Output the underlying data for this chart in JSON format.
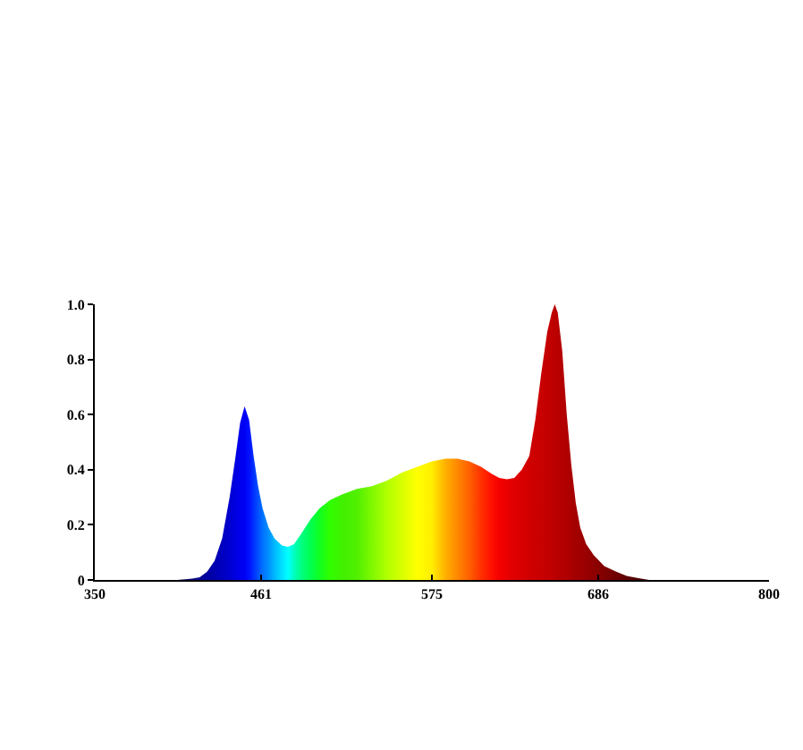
{
  "chart_data": {
    "type": "area",
    "x": [
      405,
      415,
      420,
      425,
      430,
      435,
      440,
      444,
      447,
      450,
      453,
      456,
      459,
      462,
      466,
      470,
      475,
      479,
      483,
      488,
      494,
      500,
      507,
      515,
      525,
      535,
      545,
      555,
      565,
      575,
      584,
      592,
      600,
      608,
      615,
      620,
      625,
      630,
      635,
      640,
      644,
      648,
      652,
      655,
      657,
      659,
      662,
      665,
      668,
      671,
      674,
      678,
      683,
      690,
      698,
      705,
      712,
      720
    ],
    "series": [
      {
        "values": [
          0,
          0.005,
          0.01,
          0.03,
          0.07,
          0.15,
          0.3,
          0.45,
          0.57,
          0.63,
          0.58,
          0.45,
          0.34,
          0.26,
          0.19,
          0.15,
          0.125,
          0.12,
          0.13,
          0.17,
          0.22,
          0.26,
          0.29,
          0.31,
          0.33,
          0.34,
          0.36,
          0.39,
          0.41,
          0.43,
          0.44,
          0.44,
          0.43,
          0.41,
          0.385,
          0.37,
          0.365,
          0.37,
          0.4,
          0.45,
          0.58,
          0.75,
          0.9,
          0.97,
          1,
          0.97,
          0.83,
          0.6,
          0.42,
          0.28,
          0.19,
          0.13,
          0.09,
          0.05,
          0.03,
          0.015,
          0.007,
          0
        ],
        "colors": [
          "#0a0a70",
          "#0a0a80",
          "#0a0a90",
          "#0000a0",
          "#0000b0",
          "#0000c0",
          "#0000d0",
          "#0000e0",
          "#0000ee",
          "#0000f5",
          "#0010ff",
          "#0030ff",
          "#0050ff",
          "#0070ff",
          "#0090ff",
          "#00b8ff",
          "#00e0ff",
          "#00ffff",
          "#00ffc0",
          "#00ff80",
          "#00ff50",
          "#10ff20",
          "#30ff00",
          "#40f000",
          "#50f000",
          "#80f800",
          "#b0ff00",
          "#d8ff00",
          "#ffff00",
          "#ffee00",
          "#ffb000",
          "#ff8800",
          "#ff6000",
          "#ff3000",
          "#ff1000",
          "#f40000",
          "#ea0000",
          "#e00000",
          "#d80000",
          "#d00000",
          "#cc0000",
          "#c80000",
          "#c40000",
          "#c00000",
          "#bc0000",
          "#b80000",
          "#b40000",
          "#b00000",
          "#aa0000",
          "#a40000",
          "#a00000",
          "#980000",
          "#900000",
          "#800000",
          "#700000",
          "#600000",
          "#500000",
          "#400000"
        ]
      }
    ],
    "xlim": [
      350,
      800
    ],
    "ylim": [
      0,
      1
    ],
    "xticks": [
      350,
      461,
      575,
      686,
      800
    ],
    "yticks": [
      0,
      0.2,
      0.4,
      0.6,
      0.8,
      {
        "value": 1,
        "label": "1.0"
      }
    ]
  }
}
